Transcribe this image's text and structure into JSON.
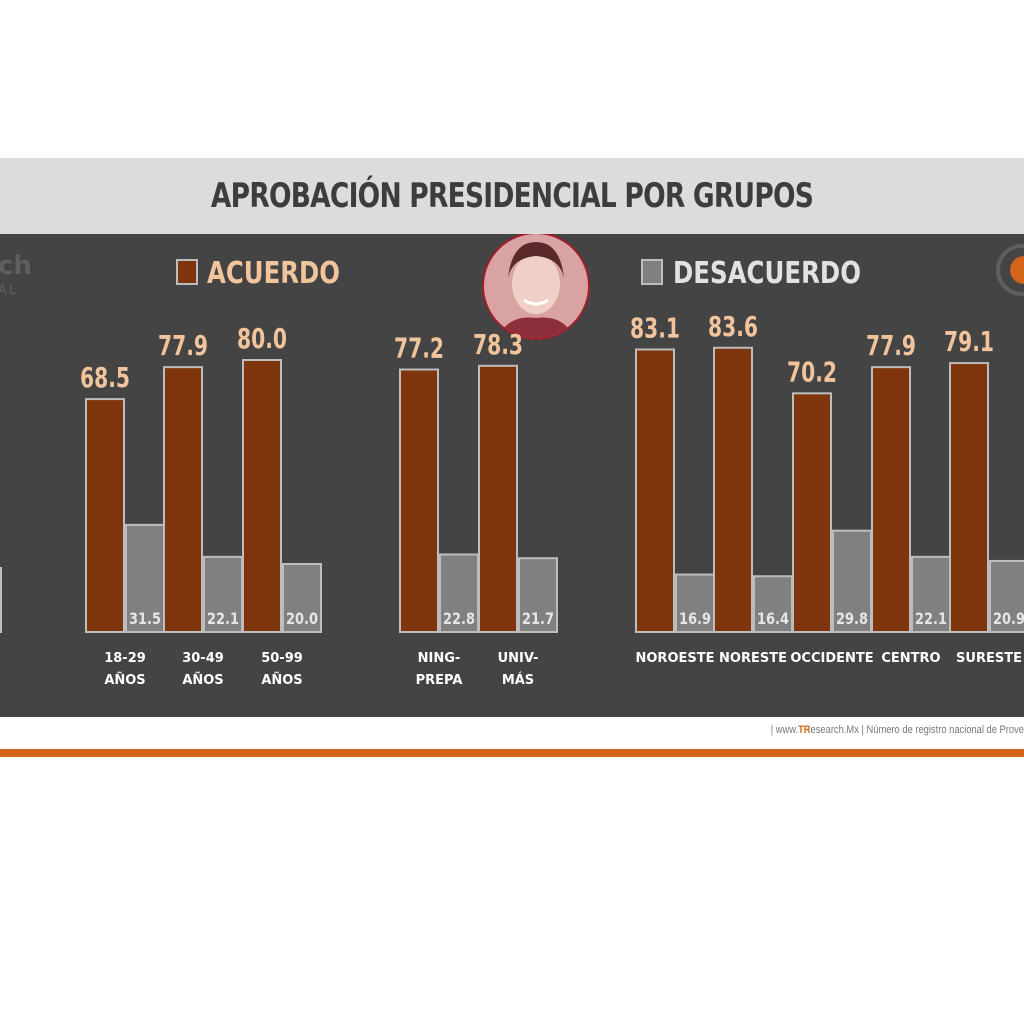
{
  "header": {
    "title": "APROBACIÓN PRESIDENCIAL POR GRUPOS"
  },
  "footer": {
    "site_prefix": "| www.",
    "site_brand": "TR",
    "site_rest": "esearch.Mx",
    "registry": " | Número de registro nacional de Prove"
  },
  "logos": {
    "left_fragment": "ch",
    "left_fragment_2": "AL"
  },
  "colors": {
    "acuerdo": "#7e350d",
    "desacuerdo": "#808080",
    "accent": "#d46419",
    "value_label": "#f2c49b",
    "panel": "#444444"
  },
  "chart_data": {
    "type": "bar",
    "categories": [
      "18-29\nAÑOS",
      "30-49\nAÑOS",
      "50-99\nAÑOS",
      "NING-\nPREPA",
      "UNIV-\nMÁS",
      "NOROESTE",
      "NORESTE",
      "OCCIDENTE",
      "CENTRO",
      "SURESTE"
    ],
    "series": [
      {
        "name": "ACUERDO",
        "values": [
          68.5,
          77.9,
          80.0,
          77.2,
          78.3,
          83.1,
          83.6,
          70.2,
          77.9,
          79.1
        ]
      },
      {
        "name": "DESACUERDO",
        "values": [
          31.5,
          22.1,
          20.0,
          22.8,
          21.7,
          16.9,
          16.4,
          29.8,
          22.1,
          20.9
        ]
      }
    ],
    "value_labels_acuerdo": [
      "68.5",
      "77.9",
      "80.0",
      "77.2",
      "78.3",
      "83.1",
      "83.6",
      "70.2",
      "77.9",
      "79.1"
    ],
    "value_labels_desacuerdo": [
      "31.5",
      "22.1",
      "20.0",
      "22.8",
      "21.7",
      "16.9",
      "16.4",
      "29.8",
      "22.1",
      "20.9"
    ],
    "legend": {
      "placement": "top",
      "acuerdo_label": "ACUERDO",
      "desacuerdo_label": "DESACUERDO"
    },
    "ylim": [
      0,
      100
    ],
    "grid": false
  }
}
